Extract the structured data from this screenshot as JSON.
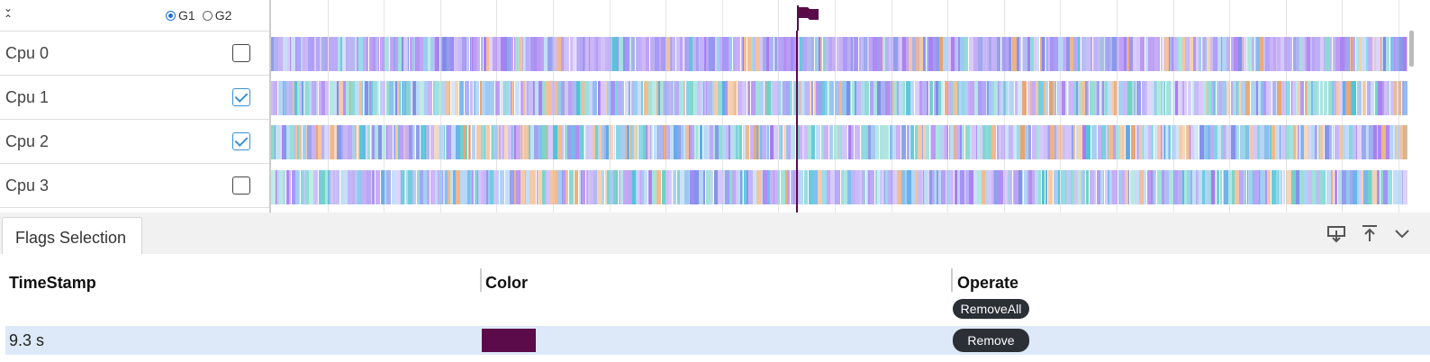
{
  "header": {
    "collapse_up_icon": "chevron-up-icon",
    "groups": [
      {
        "label": "G1",
        "checked": true
      },
      {
        "label": "G2",
        "checked": false
      }
    ]
  },
  "cpus": [
    {
      "label": "Cpu 0",
      "checked": false
    },
    {
      "label": "Cpu 1",
      "checked": true
    },
    {
      "label": "Cpu 2",
      "checked": true
    },
    {
      "label": "Cpu 3",
      "checked": false
    }
  ],
  "flag": {
    "color": "#5b0a4a",
    "icon": "flag-icon"
  },
  "palette": [
    "#a67bf0",
    "#9d8cf5",
    "#b9a4f4",
    "#7e8ce8",
    "#c9b7f8",
    "#4fc3d6",
    "#6fd0c6",
    "#5aa8e8",
    "#e8a06a",
    "#f0b88a",
    "#9ec7f2",
    "#b0d4f5",
    "#8fdcd5"
  ],
  "panel": {
    "tab_label": "Flags Selection",
    "icons": [
      "download-icon",
      "upload-icon",
      "chevron-down-icon"
    ],
    "columns": [
      "TimeStamp",
      "Color",
      "Operate"
    ],
    "remove_all_label": "RemoveAll",
    "rows": [
      {
        "timestamp": "9.3 s",
        "color": "#5b0a4a",
        "remove_label": "Remove"
      }
    ]
  }
}
